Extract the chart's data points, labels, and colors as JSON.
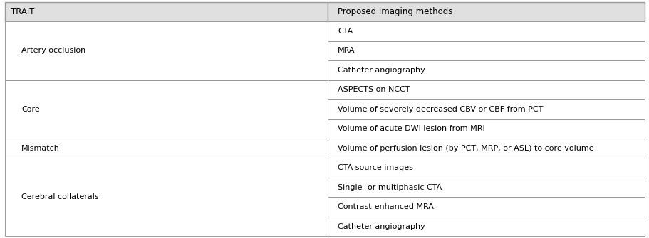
{
  "col1_header": "TRAIT",
  "col2_header": "Proposed imaging methods",
  "rows": [
    {
      "trait": "Artery occlusion",
      "methods": [
        "CTA",
        "MRA",
        "Catheter angiography"
      ]
    },
    {
      "trait": "Core",
      "methods": [
        "ASPECTS on NCCT",
        "Volume of severely decreased CBV or CBF from PCT",
        "Volume of acute DWI lesion from MRI"
      ]
    },
    {
      "trait": "Mismatch",
      "methods": [
        "Volume of perfusion lesion (by PCT, MRP, or ASL) to core volume"
      ]
    },
    {
      "trait": "Cerebral collaterals",
      "methods": [
        "CTA source images",
        "Single- or multiphasic CTA",
        "Contrast-enhanced MRA",
        "Catheter angiography"
      ]
    }
  ],
  "header_bg": "#e0e0e0",
  "cell_bg": "#ffffff",
  "border_color": "#999999",
  "text_color": "#000000",
  "header_fontsize": 8.5,
  "cell_fontsize": 8.0,
  "col_split": 0.505,
  "fig_width": 9.12,
  "fig_height": 3.35,
  "L": 0.008,
  "R": 0.992,
  "T": 0.992,
  "B": 0.008,
  "trait_indent": 0.025,
  "method_indent": 0.015
}
